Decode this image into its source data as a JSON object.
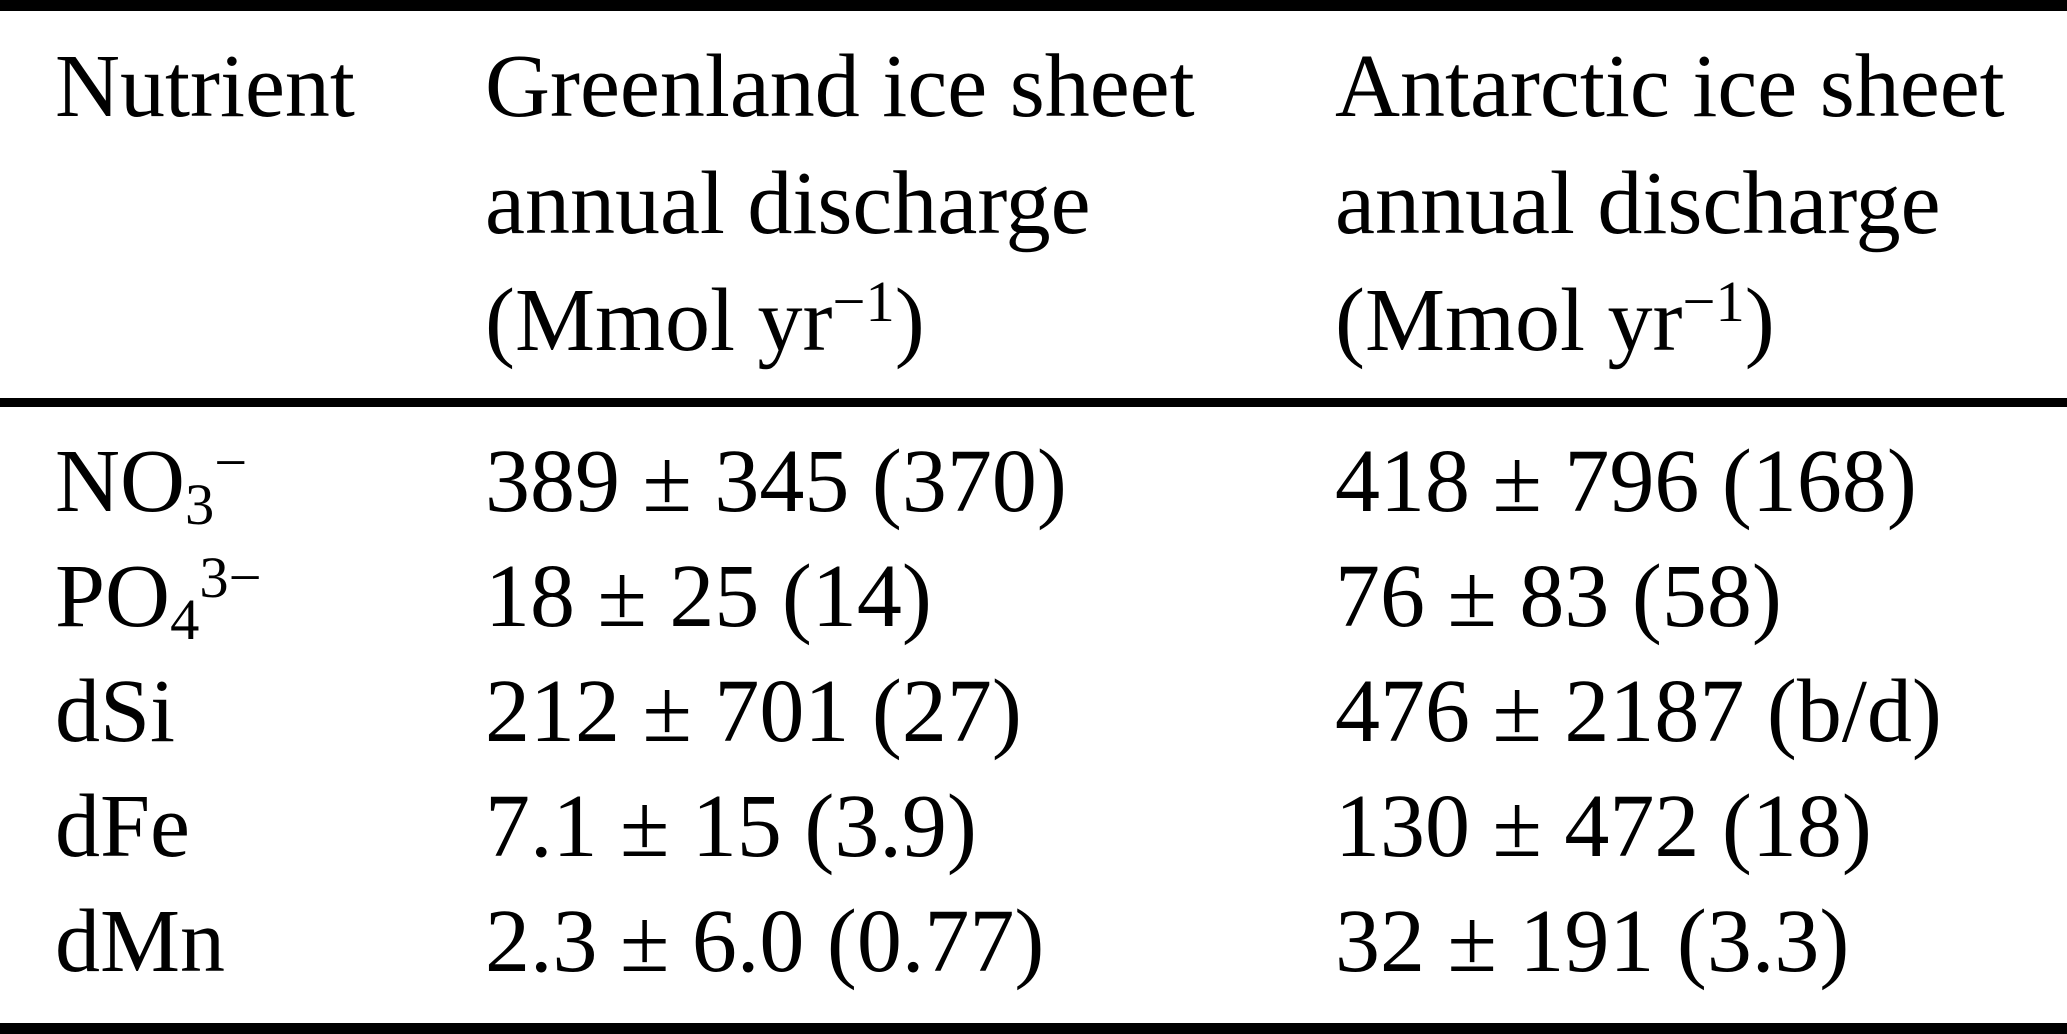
{
  "page": {
    "background": "#ffffff",
    "text_color": "#000000",
    "rule_color": "#000000"
  },
  "table": {
    "header": {
      "col_nutrient": "Nutrient",
      "col_greenland": {
        "line1": "Greenland ice sheet",
        "line2": "annual discharge",
        "unit_prefix": "(Mmol yr",
        "unit_sup": "−1",
        "unit_suffix": ")"
      },
      "col_antarctic": {
        "line1": "Antarctic ice sheet",
        "line2": "annual discharge",
        "unit_prefix": "(Mmol yr",
        "unit_sup": "−1",
        "unit_suffix": ")"
      }
    },
    "rows": [
      {
        "formula_base": "NO",
        "formula_sub": "3",
        "formula_sup": "−",
        "greenland": "389 ± 345 (370)",
        "antarctic": "418 ± 796 (168)"
      },
      {
        "formula_base": "PO",
        "formula_sub": "4",
        "formula_sup": "3−",
        "greenland": "18 ± 25 (14)",
        "antarctic": "76 ± 83 (58)"
      },
      {
        "formula_base": "dSi",
        "formula_sub": "",
        "formula_sup": "",
        "greenland": "212 ± 701 (27)",
        "antarctic": "476 ± 2187 (b/d)"
      },
      {
        "formula_base": "dFe",
        "formula_sub": "",
        "formula_sup": "",
        "greenland": "7.1 ± 15 (3.9)",
        "antarctic": "130 ± 472 (18)"
      },
      {
        "formula_base": "dMn",
        "formula_sub": "",
        "formula_sup": "",
        "greenland": "2.3 ± 6.0 (0.77)",
        "antarctic": "32 ± 191 (3.3)"
      }
    ]
  }
}
